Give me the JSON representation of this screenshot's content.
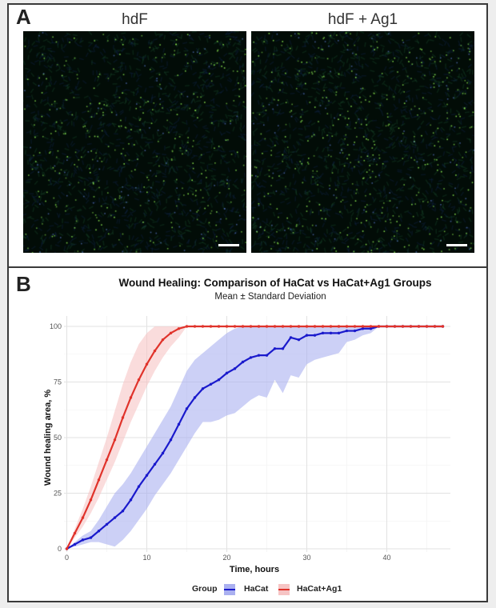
{
  "panelA": {
    "letter": "A",
    "images": [
      {
        "title": "hdF",
        "scale_bar": true
      },
      {
        "title": "hdF + Ag1",
        "scale_bar": true
      }
    ]
  },
  "panelB": {
    "letter": "B"
  },
  "colors": {
    "hacat": "#1a1acc",
    "hacat_band": "#aab0f0",
    "ag1": "#e0332b",
    "ag1_band": "#f6c4c4",
    "grid": "#e2e2e2"
  },
  "chart_data": {
    "type": "line",
    "title": "Wound Healing: Comparison of HaCat vs HaCat+Ag1 Groups",
    "subtitle": "Mean ± Standard Deviation",
    "xlabel": "Time, hours",
    "ylabel": "Wound healing area, %",
    "xlim": [
      0,
      48
    ],
    "ylim": [
      0,
      100
    ],
    "x_ticks": [
      0,
      10,
      20,
      30,
      40
    ],
    "y_ticks": [
      0,
      25,
      50,
      75,
      100
    ],
    "grid": true,
    "legend": {
      "title": "Group",
      "position": "bottom",
      "entries": [
        "HaCat",
        "HaCat+Ag1"
      ]
    },
    "x": [
      0,
      1,
      2,
      3,
      4,
      5,
      6,
      7,
      8,
      9,
      10,
      11,
      12,
      13,
      14,
      15,
      16,
      17,
      18,
      19,
      20,
      21,
      22,
      23,
      24,
      25,
      26,
      27,
      28,
      29,
      30,
      31,
      32,
      33,
      34,
      35,
      36,
      37,
      38,
      39,
      40,
      41,
      42,
      43,
      44,
      45,
      46,
      47
    ],
    "series": [
      {
        "name": "HaCat",
        "values": [
          0,
          2,
          4,
          5,
          8,
          11,
          14,
          17,
          22,
          28,
          33,
          38,
          43,
          49,
          56,
          63,
          68,
          72,
          74,
          76,
          79,
          81,
          84,
          86,
          87,
          87,
          90,
          90,
          95,
          94,
          96,
          96,
          97,
          97,
          97,
          98,
          98,
          99,
          99,
          100,
          100,
          100,
          100,
          100,
          100,
          100,
          100,
          100
        ],
        "sd_lower": [
          0,
          1,
          2,
          3,
          3,
          2,
          1,
          4,
          8,
          13,
          18,
          24,
          29,
          34,
          40,
          46,
          52,
          57,
          57,
          58,
          60,
          61,
          64,
          67,
          69,
          68,
          76,
          70,
          78,
          77,
          83,
          85,
          86,
          87,
          88,
          93,
          94,
          96,
          97,
          100,
          100,
          100,
          100,
          100,
          100,
          100,
          100,
          100
        ],
        "sd_upper": [
          0,
          3,
          6,
          8,
          13,
          19,
          25,
          29,
          34,
          40,
          46,
          52,
          58,
          64,
          72,
          80,
          85,
          88,
          91,
          94,
          97,
          99,
          100,
          100,
          100,
          100,
          100,
          100,
          100,
          100,
          100,
          100,
          100,
          100,
          100,
          100,
          100,
          100,
          100,
          100,
          100,
          100,
          100,
          100,
          100,
          100,
          100,
          100
        ]
      },
      {
        "name": "HaCat+Ag1",
        "values": [
          0,
          7,
          14,
          22,
          31,
          40,
          49,
          59,
          68,
          76,
          83,
          89,
          94,
          97,
          99,
          100,
          100,
          100,
          100,
          100,
          100,
          100,
          100,
          100,
          100,
          100,
          100,
          100,
          100,
          100,
          100,
          100,
          100,
          100,
          100,
          100,
          100,
          100,
          100,
          100,
          100,
          100,
          100,
          100,
          100,
          100,
          100,
          100
        ],
        "sd_lower": [
          0,
          5,
          10,
          16,
          23,
          31,
          39,
          48,
          57,
          65,
          73,
          80,
          86,
          91,
          95,
          100,
          100,
          100,
          100,
          100,
          100,
          100,
          100,
          100,
          100,
          100,
          100,
          100,
          100,
          100,
          100,
          100,
          100,
          100,
          100,
          100,
          100,
          100,
          100,
          100,
          100,
          100,
          100,
          100,
          100,
          100,
          100,
          100
        ],
        "sd_upper": [
          0,
          9,
          18,
          28,
          39,
          50,
          62,
          74,
          84,
          92,
          97,
          100,
          100,
          100,
          100,
          100,
          100,
          100,
          100,
          100,
          100,
          100,
          100,
          100,
          100,
          100,
          100,
          100,
          100,
          100,
          100,
          100,
          100,
          100,
          100,
          100,
          100,
          100,
          100,
          100,
          100,
          100,
          100,
          100,
          100,
          100,
          100,
          100
        ]
      }
    ]
  }
}
